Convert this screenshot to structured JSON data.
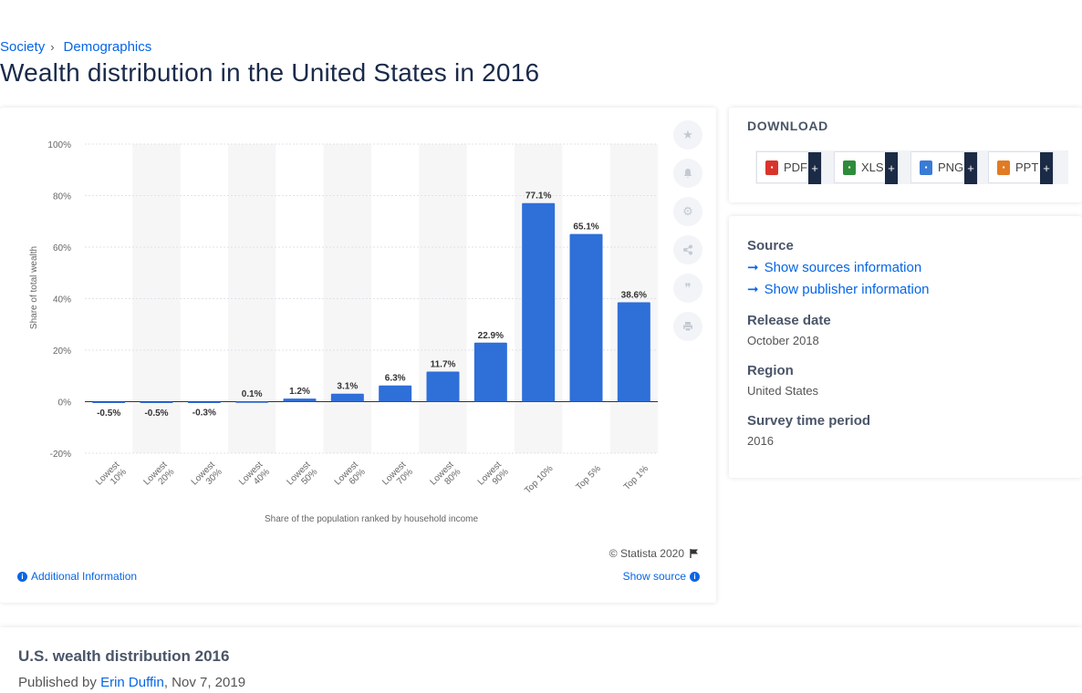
{
  "breadcrumb": {
    "items": [
      "Society",
      "Demographics"
    ],
    "sep": "›"
  },
  "page_title": "Wealth distribution in the United States in 2016",
  "colors": {
    "bar": "#2e6fd8",
    "link": "#0666e5",
    "grid": "#e0e3e8",
    "band": "#f6f6f7"
  },
  "toolbar": {
    "icons": [
      "star-icon",
      "bell-icon",
      "gear-icon",
      "share-icon",
      "quote-icon",
      "print-icon"
    ]
  },
  "chart_data": {
    "type": "bar",
    "categories": [
      "Lowest 10%",
      "Lowest 20%",
      "Lowest 30%",
      "Lowest 40%",
      "Lowest 50%",
      "Lowest 60%",
      "Lowest 70%",
      "Lowest 80%",
      "Lowest 90%",
      "Top 10%",
      "Top 5%",
      "Top 1%"
    ],
    "values": [
      -0.5,
      -0.5,
      -0.3,
      0.1,
      1.2,
      3.1,
      6.3,
      11.7,
      22.9,
      77.1,
      65.1,
      38.6
    ],
    "value_labels": [
      "-0.5%",
      "-0.5%",
      "-0.3%",
      "0.1%",
      "1.2%",
      "3.1%",
      "6.3%",
      "11.7%",
      "22.9%",
      "77.1%",
      "65.1%",
      "38.6%"
    ],
    "tick_labels": [
      "100%",
      "80%",
      "60%",
      "40%",
      "20%",
      "0%",
      "-20%"
    ],
    "ticks": [
      100,
      80,
      60,
      40,
      20,
      0,
      -20
    ],
    "ylim": [
      -20,
      100
    ],
    "ylabel": "Share of total wealth",
    "xlabel": "Share of the population ranked by household income",
    "title": "",
    "grid": true
  },
  "chart_footer": {
    "copyright": "© Statista 2020",
    "additional_info": "Additional Information",
    "show_source": "Show source"
  },
  "download": {
    "title": "DOWNLOAD",
    "buttons": [
      {
        "label": "PDF",
        "plus": "+",
        "color": "#d9342b",
        "icon": "pdf-file-icon"
      },
      {
        "label": "XLS",
        "plus": "+",
        "color": "#2e8b3a",
        "icon": "xls-file-icon"
      },
      {
        "label": "PNG",
        "plus": "+",
        "color": "#3a7bd5",
        "icon": "png-file-icon"
      },
      {
        "label": "PPT",
        "plus": "+",
        "color": "#e07b24",
        "icon": "ppt-file-icon"
      }
    ]
  },
  "info": {
    "source_label": "Source",
    "show_sources": "Show sources information",
    "show_publisher": "Show publisher information",
    "release_label": "Release date",
    "release_value": "October 2018",
    "region_label": "Region",
    "region_value": "United States",
    "survey_label": "Survey time period",
    "survey_value": "2016"
  },
  "description": {
    "title": "U.S. wealth distribution 2016",
    "published_by": "Published by",
    "author": "Erin Duffin",
    "date": ", Nov 7, 2019"
  }
}
